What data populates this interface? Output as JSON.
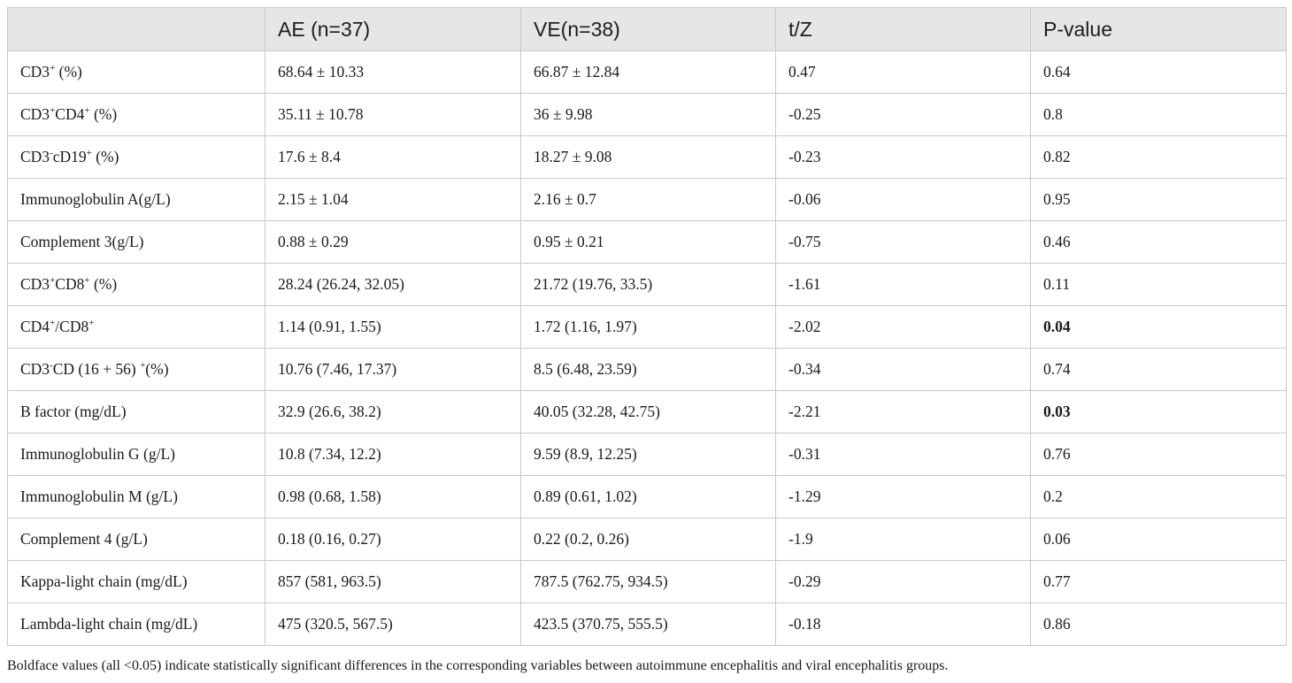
{
  "table": {
    "headers": [
      "",
      "AE (n=37)",
      "VE(n=38)",
      "t/Z",
      "P-value"
    ],
    "rows": [
      {
        "label": [
          [
            "CD3",
            ""
          ],
          [
            "+",
            "sup"
          ],
          [
            " (%)",
            ""
          ]
        ],
        "ae": "68.64 ± 10.33",
        "ve": "66.87 ± 12.84",
        "tz": "0.47",
        "p": "0.64",
        "p_bold": false
      },
      {
        "label": [
          [
            "CD3",
            ""
          ],
          [
            "+",
            "sup"
          ],
          [
            "CD4",
            ""
          ],
          [
            "+",
            "sup"
          ],
          [
            " (%)",
            ""
          ]
        ],
        "ae": "35.11 ± 10.78",
        "ve": "36 ± 9.98",
        "tz": "-0.25",
        "p": "0.8",
        "p_bold": false
      },
      {
        "label": [
          [
            "CD3",
            ""
          ],
          [
            "-",
            "sup"
          ],
          [
            "cD19",
            ""
          ],
          [
            "+",
            "sup"
          ],
          [
            " (%)",
            ""
          ]
        ],
        "ae": "17.6 ± 8.4",
        "ve": "18.27 ± 9.08",
        "tz": "-0.23",
        "p": "0.82",
        "p_bold": false
      },
      {
        "label": [
          [
            "Immunoglobulin A(g/L)",
            ""
          ]
        ],
        "ae": "2.15 ± 1.04",
        "ve": "2.16 ± 0.7",
        "tz": "-0.06",
        "p": "0.95",
        "p_bold": false
      },
      {
        "label": [
          [
            "Complement 3(g/L)",
            ""
          ]
        ],
        "ae": "0.88 ± 0.29",
        "ve": "0.95 ± 0.21",
        "tz": "-0.75",
        "p": "0.46",
        "p_bold": false
      },
      {
        "label": [
          [
            "CD3",
            ""
          ],
          [
            "+",
            "sup"
          ],
          [
            "CD8",
            ""
          ],
          [
            "+",
            "sup"
          ],
          [
            " (%)",
            ""
          ]
        ],
        "ae": "28.24 (26.24, 32.05)",
        "ve": "21.72 (19.76, 33.5)",
        "tz": "-1.61",
        "p": "0.11",
        "p_bold": false
      },
      {
        "label": [
          [
            "CD4",
            ""
          ],
          [
            "+",
            "sup"
          ],
          [
            "/CD8",
            ""
          ],
          [
            "+",
            "sup"
          ]
        ],
        "ae": "1.14 (0.91, 1.55)",
        "ve": "1.72 (1.16, 1.97)",
        "tz": "-2.02",
        "p": "0.04",
        "p_bold": true
      },
      {
        "label": [
          [
            "CD3",
            ""
          ],
          [
            "-",
            "sup"
          ],
          [
            "CD (16 + 56) ",
            ""
          ],
          [
            "+",
            "sup"
          ],
          [
            "(%)",
            ""
          ]
        ],
        "ae": "10.76 (7.46, 17.37)",
        "ve": "8.5 (6.48, 23.59)",
        "tz": "-0.34",
        "p": "0.74",
        "p_bold": false
      },
      {
        "label": [
          [
            "B factor (mg/dL)",
            ""
          ]
        ],
        "ae": "32.9 (26.6, 38.2)",
        "ve": "40.05 (32.28, 42.75)",
        "tz": "-2.21",
        "p": "0.03",
        "p_bold": true
      },
      {
        "label": [
          [
            "Immunoglobulin G (g/L)",
            ""
          ]
        ],
        "ae": "10.8 (7.34, 12.2)",
        "ve": "9.59 (8.9, 12.25)",
        "tz": "-0.31",
        "p": "0.76",
        "p_bold": false
      },
      {
        "label": [
          [
            "Immunoglobulin M (g/L)",
            ""
          ]
        ],
        "ae": "0.98 (0.68, 1.58)",
        "ve": "0.89 (0.61, 1.02)",
        "tz": "-1.29",
        "p": "0.2",
        "p_bold": false
      },
      {
        "label": [
          [
            "Complement 4 (g/L)",
            ""
          ]
        ],
        "ae": "0.18 (0.16, 0.27)",
        "ve": "0.22 (0.2, 0.26)",
        "tz": "-1.9",
        "p": "0.06",
        "p_bold": false
      },
      {
        "label": [
          [
            "Kappa-light chain (mg/dL)",
            ""
          ]
        ],
        "ae": "857 (581, 963.5)",
        "ve": "787.5 (762.75, 934.5)",
        "tz": "-0.29",
        "p": "0.77",
        "p_bold": false
      },
      {
        "label": [
          [
            "Lambda-light chain (mg/dL)",
            ""
          ]
        ],
        "ae": "475 (320.5, 567.5)",
        "ve": "423.5 (370.75, 555.5)",
        "tz": "-0.18",
        "p": "0.86",
        "p_bold": false
      }
    ]
  },
  "footnote": "Boldface values (all <0.05) indicate statistically significant differences in the corresponding variables between autoimmune encephalitis and viral encephalitis groups."
}
